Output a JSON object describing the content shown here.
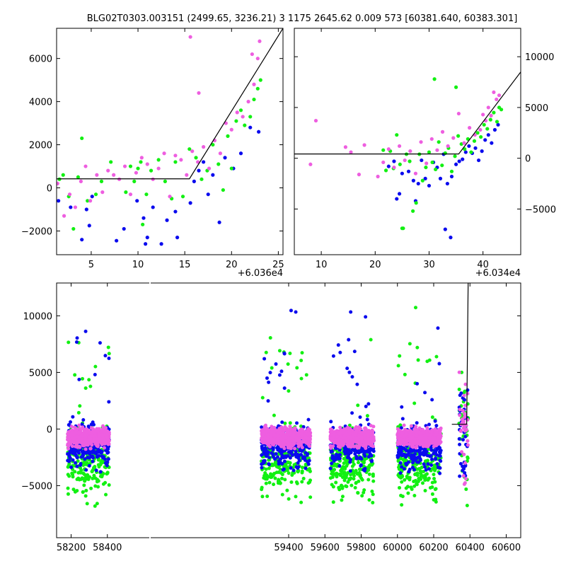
{
  "title": "BLG02T0303.003151 (2499.65, 3236.21)   3 1175 2645.62 0.009 573 [60381.640, 60383.301]",
  "colors": {
    "blue": "#0a0aee",
    "green": "#12f012",
    "pink": "#ee5ee0",
    "model": "#000000"
  },
  "chart_data": [
    {
      "id": "top-left",
      "type": "scatter",
      "title": "",
      "xlabel": "",
      "ylabel": "",
      "x_offset_label": "+6.036e4",
      "xlim": [
        1.3,
        25.5
      ],
      "ylim": [
        -3100,
        7400
      ],
      "x_tick_labels": [
        "5",
        "10",
        "15",
        "20",
        "25"
      ],
      "y_tick_labels": [
        "−2000",
        "0",
        "2000",
        "4000",
        "6000"
      ],
      "model_line": {
        "x": [
          1.3,
          15.5,
          25.5
        ],
        "y": [
          420,
          420,
          7400
        ]
      },
      "series": [
        {
          "color": "blue",
          "x": [
            1.5,
            2.8,
            4.0,
            4.5,
            4.8,
            5.1,
            7.7,
            8.5,
            9.9,
            10.6,
            10.8,
            11.0,
            11.6,
            12.5,
            13.1,
            14.0,
            14.2,
            15.6,
            16.0,
            16.5,
            17.0,
            17.5,
            18.0,
            18.7,
            19.3,
            20.2,
            21.0,
            22.0,
            22.9
          ],
          "y": [
            -600,
            -900,
            -2400,
            -1000,
            -1750,
            -400,
            -2450,
            -1900,
            -600,
            -1400,
            -2600,
            -2300,
            -900,
            -2600,
            -1500,
            -1100,
            -2300,
            -700,
            300,
            800,
            1200,
            -300,
            600,
            -1600,
            1400,
            900,
            1600,
            2800,
            2600
          ]
        },
        {
          "color": "green",
          "x": [
            1.6,
            2.0,
            2.6,
            3.1,
            3.6,
            4.0,
            4.6,
            5.5,
            6.1,
            7.1,
            8.7,
            9.2,
            9.6,
            10.0,
            10.3,
            10.5,
            10.9,
            11.4,
            12.2,
            12.9,
            13.6,
            14.0,
            14.8,
            15.5,
            16.2,
            16.8,
            17.4,
            18.0,
            18.6,
            19.1,
            19.6,
            20.0,
            20.5,
            21.0,
            21.4,
            22.0,
            22.4,
            22.8,
            23.1
          ],
          "y": [
            400,
            600,
            -400,
            -1900,
            500,
            2300,
            -600,
            -300,
            300,
            1200,
            -200,
            1000,
            300,
            900,
            1200,
            -1700,
            -300,
            800,
            1300,
            300,
            -500,
            1200,
            -400,
            1800,
            1400,
            400,
            800,
            2000,
            1100,
            -100,
            2400,
            900,
            3100,
            3600,
            2900,
            3300,
            4100,
            4600,
            5000
          ]
        },
        {
          "color": "pink",
          "x": [
            1.4,
            2.1,
            2.7,
            3.3,
            3.9,
            4.4,
            4.9,
            5.6,
            6.2,
            6.8,
            7.4,
            8.0,
            8.6,
            9.2,
            9.8,
            10.4,
            11.0,
            11.6,
            12.2,
            12.8,
            13.4,
            14.0,
            14.6,
            15.2,
            15.8,
            16.4,
            17.0,
            17.6,
            18.2,
            18.8,
            19.4,
            20.0,
            20.6,
            21.2,
            21.8,
            22.4,
            23.0,
            15.6,
            16.5,
            22.2,
            22.8
          ],
          "y": [
            200,
            -1300,
            -300,
            -900,
            300,
            1000,
            -600,
            600,
            -200,
            800,
            600,
            400,
            1000,
            -300,
            700,
            1400,
            1100,
            400,
            900,
            1600,
            -400,
            1500,
            1300,
            600,
            1700,
            1200,
            1900,
            900,
            2200,
            1600,
            3000,
            2700,
            3500,
            3300,
            4000,
            4800,
            6800,
            7000,
            4400,
            6200,
            6000
          ]
        }
      ]
    },
    {
      "id": "top-right",
      "type": "scatter",
      "title": "",
      "xlabel": "",
      "ylabel": "",
      "x_offset_label": "+6.034e4",
      "xlim": [
        5,
        47
      ],
      "ylim": [
        -9500,
        12800
      ],
      "x_tick_labels": [
        "10",
        "20",
        "30",
        "40"
      ],
      "y_tick_labels": [
        "−5000",
        "0",
        "5000",
        "10000"
      ],
      "model_line": {
        "x": [
          5,
          35.5,
          47
        ],
        "y": [
          420,
          420,
          8500
        ]
      },
      "series": [
        {
          "color": "blue",
          "x": [
            22.5,
            23.5,
            24.5,
            25.0,
            26.2,
            27.1,
            28.0,
            28.6,
            29.3,
            30.0,
            30.8,
            31.5,
            32.1,
            32.7,
            33.4,
            34.2,
            35.0,
            35.6,
            36.2,
            36.8,
            37.4,
            38.0,
            38.6,
            39.2,
            39.8,
            40.4,
            41.0,
            41.6,
            42.2,
            42.8,
            33.0,
            34.0,
            27.5,
            24.0
          ],
          "y": [
            -800,
            -300,
            -3500,
            -1500,
            -1300,
            -2200,
            -2500,
            -200,
            -2000,
            -2700,
            -400,
            -900,
            -2000,
            400,
            -2500,
            -1800,
            -600,
            -300,
            -100,
            600,
            1200,
            500,
            1000,
            -200,
            700,
            1800,
            2300,
            1500,
            2800,
            3300,
            -7000,
            -7800,
            -4200,
            -4000
          ]
        },
        {
          "color": "green",
          "x": [
            21.5,
            22.0,
            22.8,
            23.4,
            24.0,
            24.6,
            25.2,
            25.8,
            26.4,
            27.0,
            27.6,
            28.2,
            28.8,
            29.4,
            30.0,
            30.6,
            31.2,
            31.8,
            32.4,
            33.0,
            33.6,
            34.2,
            34.8,
            35.4,
            36.0,
            36.6,
            37.2,
            37.8,
            38.4,
            39.0,
            39.6,
            40.2,
            40.8,
            41.4,
            42.0,
            42.6,
            43.0,
            43.4,
            25.0,
            31.0,
            35.0
          ],
          "y": [
            800,
            -1200,
            700,
            -1000,
            2300,
            -600,
            -6900,
            400,
            -300,
            -5200,
            -4400,
            400,
            -2200,
            -900,
            600,
            -400,
            -1100,
            1600,
            -700,
            500,
            1000,
            -1300,
            200,
            2200,
            1400,
            900,
            1900,
            600,
            1700,
            2500,
            2100,
            3300,
            2900,
            3800,
            4500,
            3600,
            5000,
            4800,
            -6900,
            7800,
            7000
          ]
        },
        {
          "color": "pink",
          "x": [
            8.0,
            9.0,
            14.5,
            15.5,
            17.0,
            18.0,
            20.5,
            21.5,
            22.5,
            23.5,
            24.5,
            25.5,
            26.5,
            27.5,
            28.5,
            29.5,
            30.5,
            31.5,
            32.5,
            33.5,
            34.5,
            35.5,
            36.5,
            37.5,
            38.5,
            39.5,
            40.5,
            41.5,
            42.5,
            43.0,
            42.0,
            41.0,
            40.0
          ],
          "y": [
            -600,
            3700,
            1100,
            600,
            -1600,
            1300,
            -1800,
            -400,
            900,
            -900,
            1200,
            -200,
            700,
            -1500,
            1600,
            -500,
            1900,
            800,
            2600,
            1200,
            2000,
            4400,
            1500,
            3000,
            2300,
            2800,
            3700,
            4200,
            5800,
            6200,
            6500,
            5000,
            4300
          ]
        }
      ]
    },
    {
      "id": "bottom",
      "type": "scatter",
      "title": "",
      "xlabel": "",
      "ylabel": "",
      "xlim": [
        58120,
        60680
      ],
      "ylim": [
        -9600,
        12900
      ],
      "x_tick_labels": [
        "58200",
        "58400",
        "59400",
        "59600",
        "59800",
        "60000",
        "60200",
        "60400",
        "60600"
      ],
      "y_tick_labels": [
        "−5000",
        "0",
        "5000",
        "10000"
      ],
      "model_line": {
        "x": [
          60300,
          60382,
          60390
        ],
        "y": [
          420,
          420,
          12900
        ]
      },
      "seasons": [
        {
          "x": [
            58180,
            58410
          ]
        },
        {
          "x": [
            59250,
            59520
          ]
        },
        {
          "x": [
            59630,
            59870
          ]
        },
        {
          "x": [
            60000,
            60240
          ]
        },
        {
          "x": [
            60340,
            60390
          ]
        }
      ]
    }
  ]
}
